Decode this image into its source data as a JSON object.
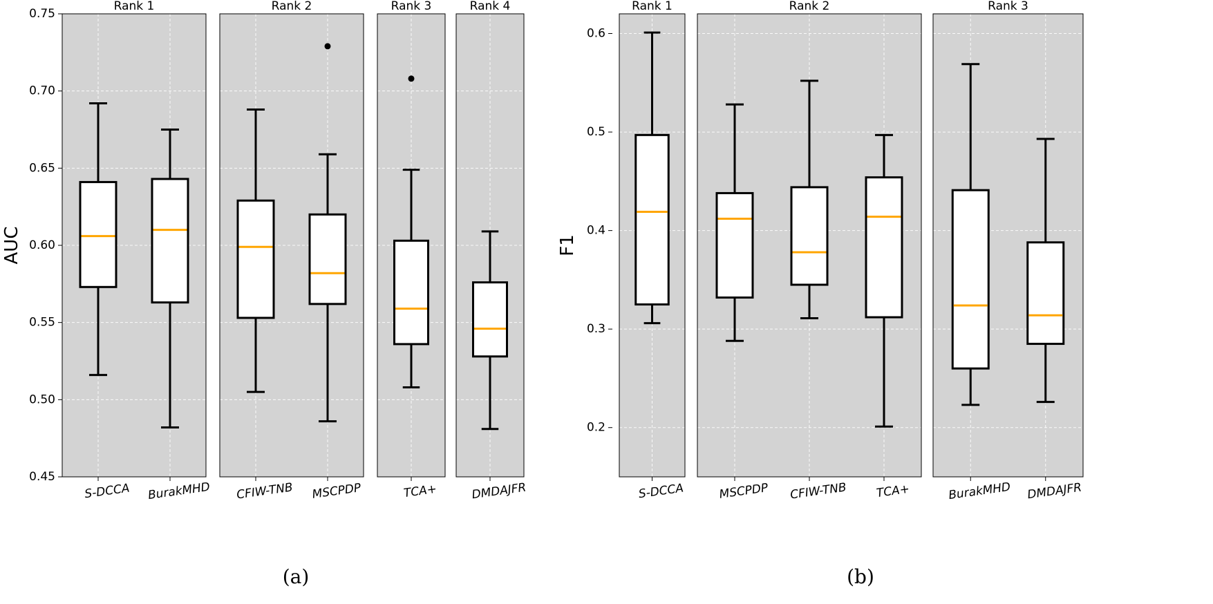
{
  "colors": {
    "panel_bg": "#d3d3d3",
    "box_fill": "#ffffff",
    "median": "#ffa500",
    "line": "#000000",
    "grid": "#ffffff"
  },
  "chart_data": [
    {
      "type": "box",
      "caption": "(a)",
      "ylabel": "AUC",
      "ylim": [
        0.45,
        0.75
      ],
      "yticks": [
        0.45,
        0.5,
        0.55,
        0.6,
        0.65,
        0.7,
        0.75
      ],
      "ytick_labels": [
        "0.45",
        "0.50",
        "0.55",
        "0.60",
        "0.65",
        "0.70",
        "0.75"
      ],
      "groups": [
        {
          "title": "Rank 1",
          "boxes": [
            {
              "label": "S-DCCA",
              "whislo": 0.516,
              "q1": 0.573,
              "med": 0.606,
              "q3": 0.641,
              "whishi": 0.692,
              "fliers": []
            },
            {
              "label": "BurakMHD",
              "whislo": 0.482,
              "q1": 0.563,
              "med": 0.61,
              "q3": 0.643,
              "whishi": 0.675,
              "fliers": []
            }
          ]
        },
        {
          "title": "Rank 2",
          "boxes": [
            {
              "label": "CFIW-TNB",
              "whislo": 0.505,
              "q1": 0.553,
              "med": 0.599,
              "q3": 0.629,
              "whishi": 0.688,
              "fliers": []
            },
            {
              "label": "MSCPDP",
              "whislo": 0.486,
              "q1": 0.562,
              "med": 0.582,
              "q3": 0.62,
              "whishi": 0.659,
              "fliers": [
                0.729
              ]
            }
          ]
        },
        {
          "title": "Rank 3",
          "boxes": [
            {
              "label": "TCA+",
              "whislo": 0.508,
              "q1": 0.536,
              "med": 0.559,
              "q3": 0.603,
              "whishi": 0.649,
              "fliers": [
                0.708
              ]
            }
          ]
        },
        {
          "title": "Rank 4",
          "boxes": [
            {
              "label": "DMDAJFR",
              "whislo": 0.481,
              "q1": 0.528,
              "med": 0.546,
              "q3": 0.576,
              "whishi": 0.609,
              "fliers": []
            }
          ]
        }
      ]
    },
    {
      "type": "box",
      "caption": "(b)",
      "ylabel": "F1",
      "ylim": [
        0.15,
        0.62
      ],
      "yticks": [
        0.2,
        0.3,
        0.4,
        0.5,
        0.6
      ],
      "ytick_labels": [
        "0.2",
        "0.3",
        "0.4",
        "0.5",
        "0.6"
      ],
      "groups": [
        {
          "title": "Rank 1",
          "boxes": [
            {
              "label": "S-DCCA",
              "whislo": 0.306,
              "q1": 0.325,
              "med": 0.419,
              "q3": 0.497,
              "whishi": 0.601,
              "fliers": []
            }
          ]
        },
        {
          "title": "Rank 2",
          "boxes": [
            {
              "label": "MSCPDP",
              "whislo": 0.288,
              "q1": 0.332,
              "med": 0.412,
              "q3": 0.438,
              "whishi": 0.528,
              "fliers": []
            },
            {
              "label": "CFIW-TNB",
              "whislo": 0.311,
              "q1": 0.345,
              "med": 0.378,
              "q3": 0.444,
              "whishi": 0.552,
              "fliers": []
            },
            {
              "label": "TCA+",
              "whislo": 0.201,
              "q1": 0.312,
              "med": 0.414,
              "q3": 0.454,
              "whishi": 0.497,
              "fliers": []
            }
          ]
        },
        {
          "title": "Rank 3",
          "boxes": [
            {
              "label": "BurakMHD",
              "whislo": 0.223,
              "q1": 0.26,
              "med": 0.324,
              "q3": 0.441,
              "whishi": 0.569,
              "fliers": []
            },
            {
              "label": "DMDAJFR",
              "whislo": 0.226,
              "q1": 0.285,
              "med": 0.314,
              "q3": 0.388,
              "whishi": 0.493,
              "fliers": []
            }
          ]
        }
      ]
    }
  ]
}
